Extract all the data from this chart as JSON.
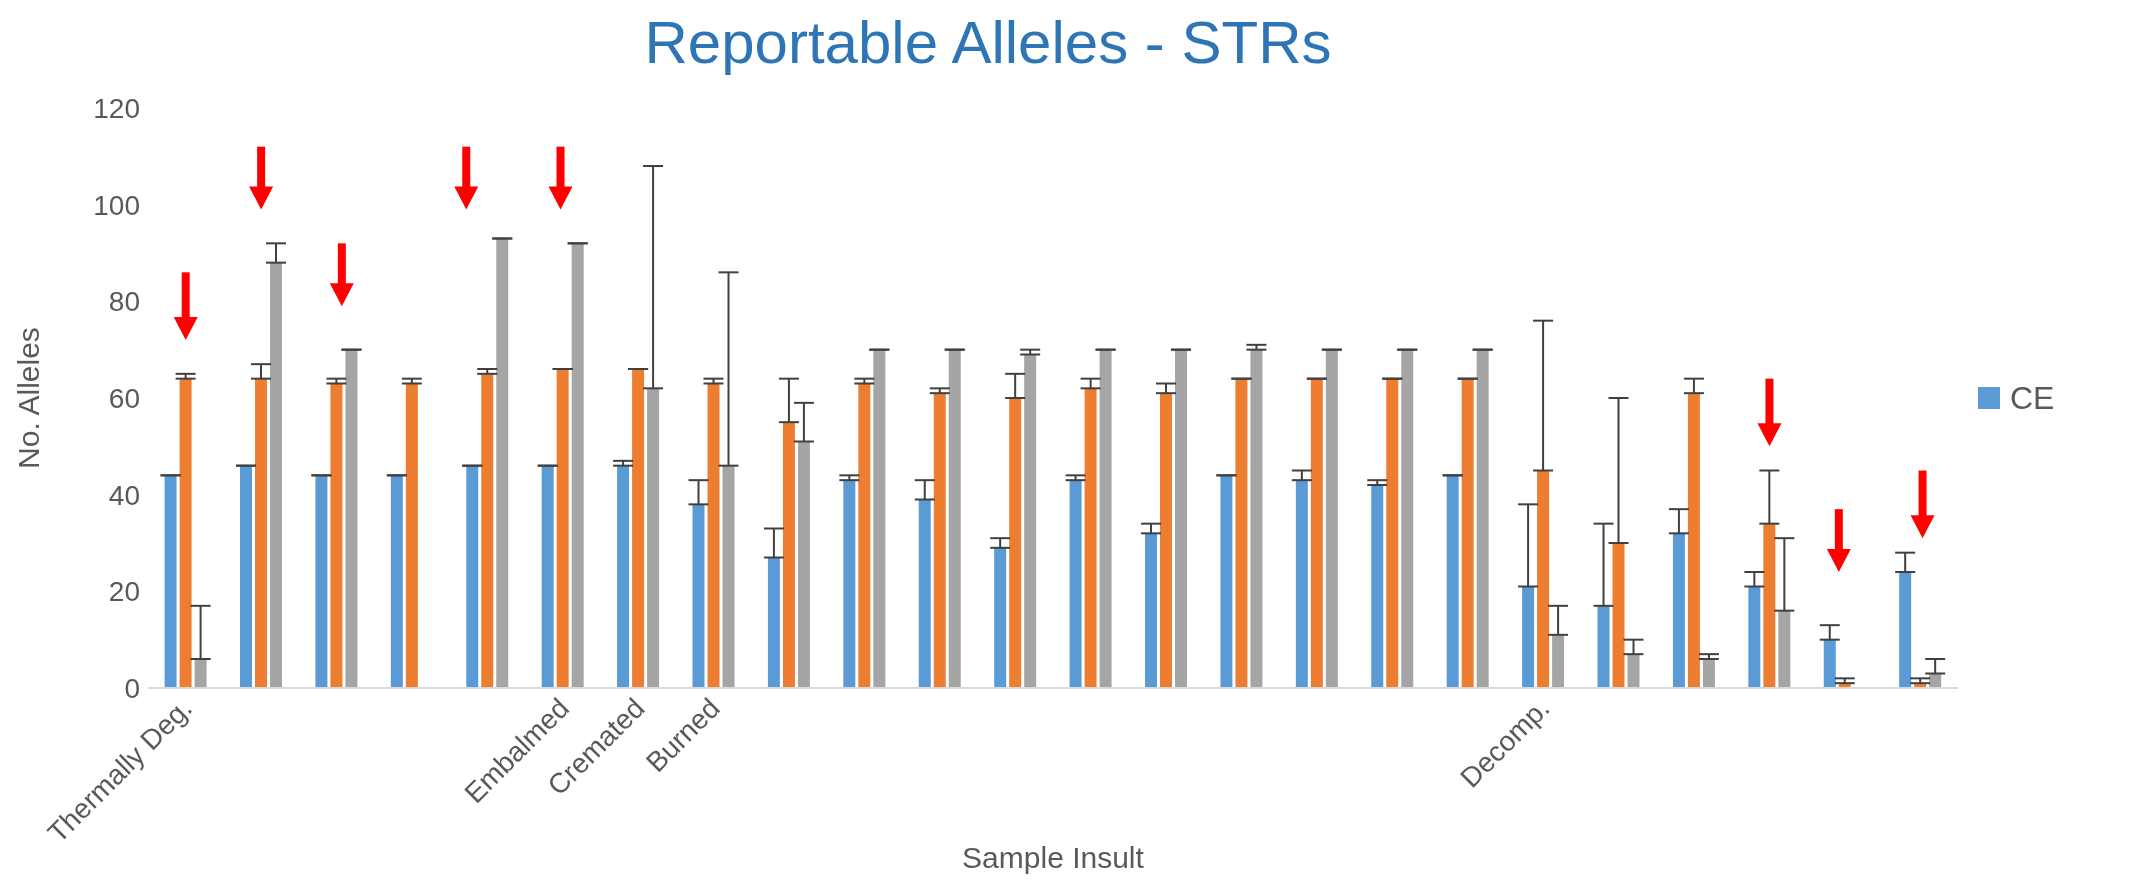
{
  "chart_data": {
    "type": "bar",
    "title": "Reportable Alleles - STRs",
    "xlabel": "Sample Insult",
    "ylabel": "No. Alleles",
    "categories": [
      "Thermally Deg.",
      null,
      null,
      null,
      null,
      "Embalmed",
      "Cremated",
      "Burned",
      null,
      null,
      null,
      null,
      null,
      null,
      null,
      null,
      null,
      null,
      "Decomp.",
      null,
      null,
      null,
      null,
      null
    ],
    "series": [
      {
        "name": "CE",
        "color": "#5b9bd5",
        "values": [
          44,
          46,
          44,
          44,
          46,
          46,
          46,
          38,
          27,
          43,
          39,
          29,
          43,
          32,
          44,
          43,
          42,
          44,
          21,
          17,
          32,
          21,
          10,
          24
        ],
        "errors": [
          [
            44,
            44
          ],
          [
            46,
            46
          ],
          [
            44,
            44
          ],
          [
            44,
            44
          ],
          [
            46,
            46
          ],
          [
            46,
            46
          ],
          [
            46,
            47
          ],
          [
            38,
            43
          ],
          [
            27,
            33
          ],
          [
            43,
            44
          ],
          [
            39,
            43
          ],
          [
            29,
            31
          ],
          [
            43,
            44
          ],
          [
            32,
            34
          ],
          [
            44,
            44
          ],
          [
            43,
            45
          ],
          [
            42,
            43
          ],
          [
            44,
            44
          ],
          [
            21,
            38
          ],
          [
            17,
            34
          ],
          [
            32,
            37
          ],
          [
            21,
            24
          ],
          [
            10,
            13
          ],
          [
            24,
            28
          ]
        ]
      },
      {
        "color": "#ed7d31",
        "values": [
          64,
          64,
          63,
          63,
          65,
          66,
          66,
          63,
          55,
          63,
          61,
          60,
          62,
          61,
          64,
          64,
          64,
          64,
          45,
          30,
          61,
          34,
          1,
          1
        ],
        "errors": [
          [
            64,
            65
          ],
          [
            64,
            67
          ],
          [
            63,
            64
          ],
          [
            63,
            64
          ],
          [
            65,
            66
          ],
          [
            66,
            66
          ],
          [
            66,
            66
          ],
          [
            63,
            64
          ],
          [
            55,
            64
          ],
          [
            63,
            64
          ],
          [
            61,
            62
          ],
          [
            60,
            65
          ],
          [
            62,
            64
          ],
          [
            61,
            63
          ],
          [
            64,
            64
          ],
          [
            64,
            64
          ],
          [
            64,
            64
          ],
          [
            64,
            64
          ],
          [
            45,
            76
          ],
          [
            30,
            60
          ],
          [
            61,
            64
          ],
          [
            34,
            45
          ],
          [
            1,
            2
          ],
          [
            1,
            2
          ]
        ]
      },
      {
        "color": "#a5a5a5",
        "values": [
          6,
          88,
          70,
          0,
          93,
          92,
          62,
          46,
          51,
          70,
          70,
          69,
          70,
          70,
          70,
          70,
          70,
          70,
          11,
          7,
          6,
          16,
          0,
          3
        ],
        "errors": [
          [
            6,
            17
          ],
          [
            88,
            92
          ],
          [
            70,
            70
          ],
          null,
          [
            93,
            93
          ],
          [
            92,
            92
          ],
          [
            62,
            108
          ],
          [
            46,
            86
          ],
          [
            51,
            59
          ],
          [
            70,
            70
          ],
          [
            70,
            70
          ],
          [
            69,
            70
          ],
          [
            70,
            70
          ],
          [
            70,
            70
          ],
          [
            70,
            71
          ],
          [
            70,
            70
          ],
          [
            70,
            70
          ],
          [
            70,
            70
          ],
          [
            11,
            17
          ],
          [
            7,
            10
          ],
          [
            6,
            7
          ],
          [
            16,
            31
          ],
          null,
          [
            3,
            6
          ]
        ]
      }
    ],
    "ylim": [
      0,
      120
    ],
    "yticks": [
      0,
      20,
      40,
      60,
      80,
      100,
      120
    ],
    "legend": "right"
  }
}
